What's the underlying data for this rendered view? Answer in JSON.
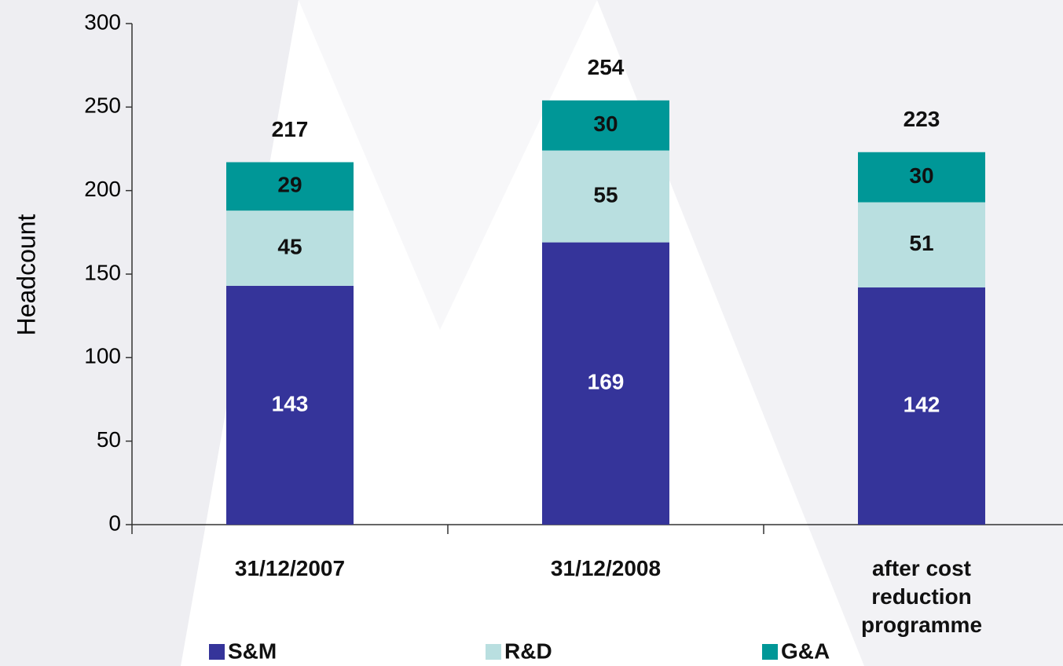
{
  "chart_data": {
    "type": "stacked_bar",
    "y_label": "Headcount",
    "categories": [
      "31/12/2007",
      "31/12/2008",
      "after cost reduction programme"
    ],
    "series": [
      {
        "name": "S&M",
        "color": "#35349a",
        "values": [
          143,
          169,
          142
        ]
      },
      {
        "name": "R&D",
        "color": "#b9dfe0",
        "values": [
          45,
          55,
          51
        ]
      },
      {
        "name": "G&A",
        "color": "#009797",
        "values": [
          29,
          30,
          30
        ]
      }
    ],
    "totals": [
      217,
      254,
      223
    ],
    "ylim": [
      0,
      300
    ],
    "yticks": [
      0,
      50,
      100,
      150,
      200,
      250,
      300
    ],
    "legend": "bottom"
  }
}
